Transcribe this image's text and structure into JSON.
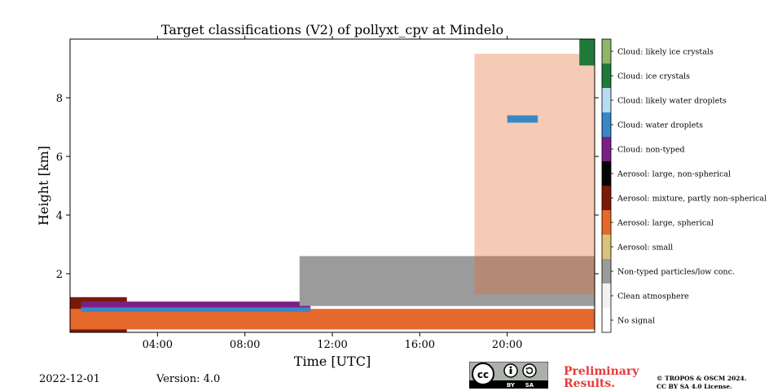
{
  "chart_data": {
    "type": "heatmap",
    "title": "Target classifications (V2) of pollyxt_cpv at Mindelo",
    "xlabel": "Time [UTC]",
    "ylabel": "Height [km]",
    "xlim": [
      0,
      24
    ],
    "ylim": [
      0,
      10
    ],
    "x_ticks": [
      4,
      8,
      12,
      16,
      20
    ],
    "x_tick_labels": [
      "04:00",
      "08:00",
      "12:00",
      "16:00",
      "20:00"
    ],
    "y_ticks": [
      2,
      4,
      6,
      8
    ],
    "y_tick_labels": [
      "2",
      "4",
      "6",
      "8"
    ],
    "classes": [
      {
        "value": 11,
        "label": "Cloud: likely ice crystals",
        "color": "#8fb56a"
      },
      {
        "value": 10,
        "label": "Cloud: ice crystals",
        "color": "#1f7a3a"
      },
      {
        "value": 9,
        "label": "Cloud: likely water droplets",
        "color": "#b7dcf2"
      },
      {
        "value": 8,
        "label": "Cloud: water droplets",
        "color": "#3a87c8"
      },
      {
        "value": 7,
        "label": "Cloud: non-typed",
        "color": "#7b1f86"
      },
      {
        "value": 6,
        "label": "Aerosol: large, non-spherical",
        "color": "#050505"
      },
      {
        "value": 5,
        "label": "Aerosol: mixture, partly non-spherical",
        "color": "#7a1a05"
      },
      {
        "value": 4,
        "label": "Aerosol: large, spherical",
        "color": "#e5692c"
      },
      {
        "value": 3,
        "label": "Aerosol: small",
        "color": "#d9c27a"
      },
      {
        "value": 2,
        "label": "Non-typed particles/low conc.",
        "color": "#9b9b9b"
      },
      {
        "value": 1,
        "label": "Clean atmosphere",
        "color": "#f2f2f2"
      },
      {
        "value": 0,
        "label": "No signal",
        "color": "#ffffff"
      }
    ],
    "layers": [
      {
        "class": "Aerosol: mixture, partly non-spherical",
        "t_start": 0,
        "t_end": 2.6,
        "h_bottom": 0,
        "h_top": 1.2
      },
      {
        "class": "Aerosol: large, spherical",
        "t_start": 0,
        "t_end": 24,
        "h_bottom": 0.1,
        "h_top": 0.8
      },
      {
        "class": "Cloud: non-typed",
        "t_start": 0.5,
        "t_end": 11.0,
        "h_bottom": 0.8,
        "h_top": 1.05
      },
      {
        "class": "Cloud: water droplets",
        "t_start": 0.5,
        "t_end": 11.0,
        "h_bottom": 0.7,
        "h_top": 0.85
      },
      {
        "class": "Non-typed particles/low conc.",
        "t_start": 10.5,
        "t_end": 24,
        "h_bottom": 0.9,
        "h_top": 2.6
      },
      {
        "class": "Aerosol: large, spherical",
        "t_start": 18.5,
        "t_end": 24,
        "h_bottom": 1.3,
        "h_top": 9.5
      },
      {
        "class": "Cloud: water droplets",
        "t_start": 20.0,
        "t_end": 21.4,
        "h_bottom": 7.15,
        "h_top": 7.4
      },
      {
        "class": "Cloud: ice crystals",
        "t_start": 23.3,
        "t_end": 24,
        "h_bottom": 9.1,
        "h_top": 10
      }
    ]
  },
  "footer": {
    "date": "2022-12-01",
    "version": "Version: 4.0",
    "preliminary_line1": "Preliminary",
    "preliminary_line2": "Results.",
    "copyright_line1": "© TROPOS & OSCM 2024.",
    "copyright_line2": "CC BY SA 4.0 License.",
    "license_badge": {
      "icon": "cc-by-sa-icon",
      "cc": "cc",
      "by": "BY",
      "sa": "SA"
    }
  }
}
